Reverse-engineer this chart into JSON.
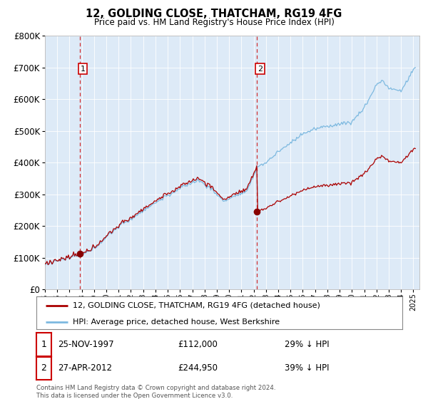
{
  "title": "12, GOLDING CLOSE, THATCHAM, RG19 4FG",
  "subtitle": "Price paid vs. HM Land Registry's House Price Index (HPI)",
  "legend_line1": "12, GOLDING CLOSE, THATCHAM, RG19 4FG (detached house)",
  "legend_line2": "HPI: Average price, detached house, West Berkshire",
  "footnote": "Contains HM Land Registry data © Crown copyright and database right 2024.\nThis data is licensed under the Open Government Licence v3.0.",
  "sale1_date": "25-NOV-1997",
  "sale1_price": 112000,
  "sale1_label": "29% ↓ HPI",
  "sale2_date": "27-APR-2012",
  "sale2_price": 244950,
  "sale2_label": "39% ↓ HPI",
  "hpi_color": "#7db9e0",
  "price_color": "#aa0000",
  "sale_dot_color": "#880000",
  "annotation_box_color": "#cc0000",
  "vline_color": "#cc0000",
  "background_color": "#ddeaf7",
  "ylim": [
    0,
    800000
  ],
  "xlim_start": 1995.0,
  "xlim_end": 2025.5
}
